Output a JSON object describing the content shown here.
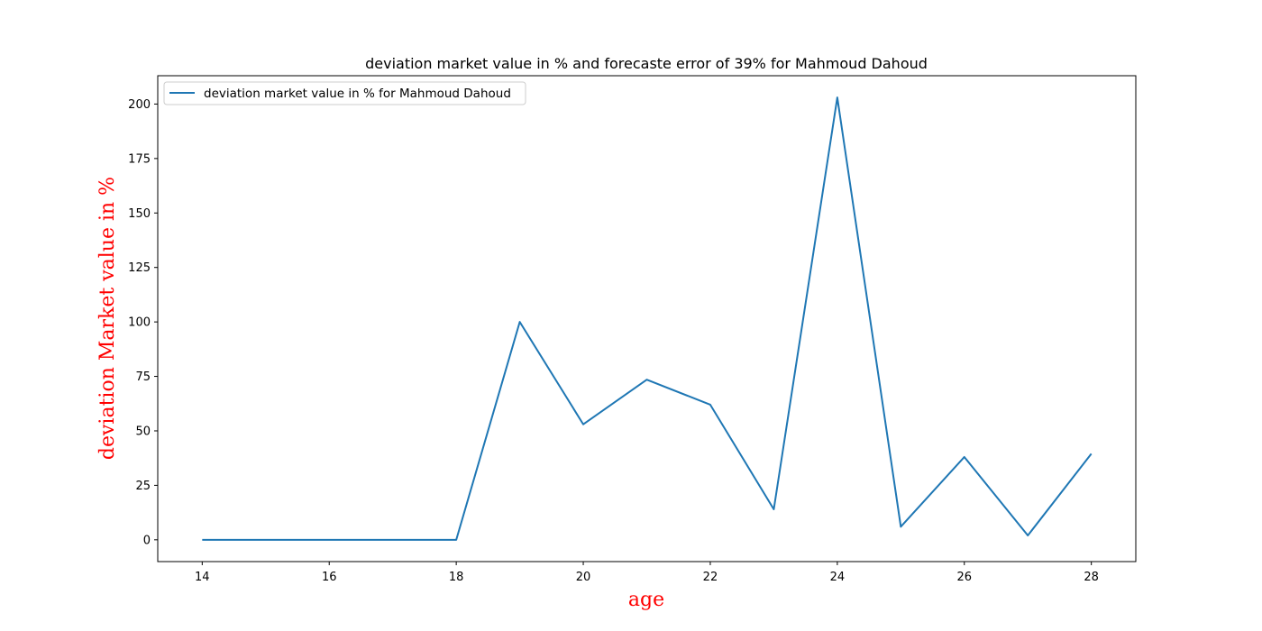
{
  "chart_data": {
    "type": "line",
    "title": "deviation market value in % and forecaste error of 39% for Mahmoud Dahoud",
    "xlabel": "age",
    "ylabel": "deviation Market value in %",
    "axis_label_color": "#ff0000",
    "xlim": [
      13.3,
      28.7
    ],
    "ylim": [
      -10,
      213
    ],
    "xticks": [
      14,
      16,
      18,
      20,
      22,
      24,
      26,
      28
    ],
    "yticks": [
      0,
      25,
      50,
      75,
      100,
      125,
      150,
      175,
      200
    ],
    "grid": false,
    "legend_position": "upper left",
    "series": [
      {
        "name": "deviation market value in % for Mahmoud Dahoud",
        "color": "#1f77b4",
        "x": [
          14,
          15,
          16,
          17,
          18,
          19,
          20,
          21,
          22,
          23,
          24,
          25,
          26,
          27,
          28
        ],
        "y": [
          0,
          0,
          0,
          0,
          0,
          100,
          53,
          73.5,
          62,
          14,
          203,
          6,
          38,
          2,
          39.5
        ]
      }
    ]
  }
}
